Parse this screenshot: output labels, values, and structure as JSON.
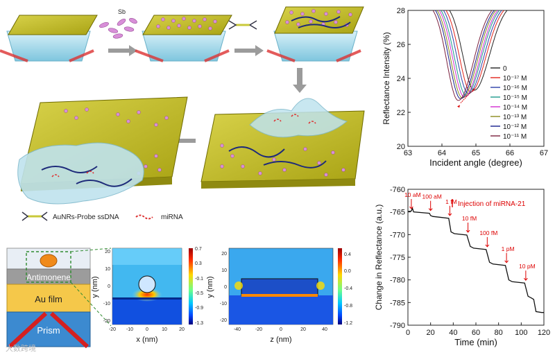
{
  "schematic": {
    "label_sb": "Sb",
    "legend_probe": "AuNRs-Probe ssDNA",
    "legend_mirna": "miRNA"
  },
  "stack": {
    "antimonene": "Antimonene",
    "au_film": "Au film",
    "prism": "Prism"
  },
  "field_xy": {
    "xlabel": "x (nm)",
    "ylabel": "y (nm)",
    "xticks": [
      "-20",
      "-10",
      "0",
      "10",
      "20"
    ],
    "yticks": [
      "20",
      "10",
      "0",
      "-10",
      "-20"
    ],
    "colorbar": [
      "0.7",
      "0.3",
      "-0.1",
      "-0.5",
      "-0.9",
      "-1.3"
    ]
  },
  "field_zy": {
    "xlabel": "z (nm)",
    "ylabel": "y (nm)",
    "xticks": [
      "-40",
      "-20",
      "0",
      "20",
      "40"
    ],
    "yticks": [
      "20",
      "10",
      "0",
      "-10",
      "-20"
    ],
    "colorbar": [
      "0.4",
      "0.0",
      "-0.4",
      "-0.8",
      "-1.2"
    ]
  },
  "watermark": "大数跨境",
  "chart_data": [
    {
      "type": "line",
      "title": "",
      "xlabel": "Incident angle (degree)",
      "ylabel": "Reflectance Intensity (%)",
      "xlim": [
        63,
        67
      ],
      "ylim": [
        20,
        28
      ],
      "xticks": [
        "63",
        "64",
        "65",
        "66",
        "67"
      ],
      "yticks": [
        "28",
        "26",
        "24",
        "22",
        "20"
      ],
      "legend_position": "right",
      "series": [
        {
          "name": "0",
          "color": "#222222",
          "min_angle": 64.95,
          "min_value": 23.3
        },
        {
          "name": "10⁻¹⁷ M",
          "color": "#e2231a",
          "min_angle": 64.85,
          "min_value": 23.2
        },
        {
          "name": "10⁻¹⁶ M",
          "color": "#2a3ea8",
          "min_angle": 64.78,
          "min_value": 23.1
        },
        {
          "name": "10⁻¹⁵ M",
          "color": "#1c9a8c",
          "min_angle": 64.71,
          "min_value": 23.0
        },
        {
          "name": "10⁻¹⁴ M",
          "color": "#d22bd0",
          "min_angle": 64.66,
          "min_value": 22.9
        },
        {
          "name": "10⁻¹³ M",
          "color": "#8a8a1c",
          "min_angle": 64.6,
          "min_value": 22.85
        },
        {
          "name": "10⁻¹² M",
          "color": "#141c8c",
          "min_angle": 64.55,
          "min_value": 22.8
        },
        {
          "name": "10⁻¹¹ M",
          "color": "#7a1e3c",
          "min_angle": 64.48,
          "min_value": 22.7
        }
      ]
    },
    {
      "type": "line",
      "title": "",
      "xlabel": "Time (min)",
      "ylabel": "Change in Reflectance (a.u.)",
      "xlim": [
        0,
        120
      ],
      "ylim": [
        -790,
        -760
      ],
      "xticks": [
        "0",
        "20",
        "40",
        "60",
        "80",
        "100",
        "120"
      ],
      "yticks": [
        "-760",
        "-765",
        "-770",
        "-775",
        "-780",
        "-785",
        "-790"
      ],
      "legend": "Injection of miRNA-21",
      "annotations": [
        {
          "label": "10 aM",
          "time": 3
        },
        {
          "label": "100 aM",
          "time": 20
        },
        {
          "label": "1 fM",
          "time": 37
        },
        {
          "label": "10 fM",
          "time": 53
        },
        {
          "label": "100 fM",
          "time": 70
        },
        {
          "label": "1 pM",
          "time": 87
        },
        {
          "label": "10 pM",
          "time": 104
        }
      ],
      "series": [
        {
          "name": "signal",
          "points": [
            [
              0,
              -764.9
            ],
            [
              3,
              -764.8
            ],
            [
              4,
              -764.2
            ],
            [
              5,
              -765.0
            ],
            [
              19,
              -765.3
            ],
            [
              20,
              -765.8
            ],
            [
              22,
              -766.0
            ],
            [
              36,
              -766.4
            ],
            [
              38,
              -769.4
            ],
            [
              41,
              -769.8
            ],
            [
              52,
              -770.1
            ],
            [
              55,
              -772.6
            ],
            [
              58,
              -773.0
            ],
            [
              69,
              -773.3
            ],
            [
              72,
              -776.1
            ],
            [
              75,
              -776.5
            ],
            [
              86,
              -776.8
            ],
            [
              89,
              -780.0
            ],
            [
              92,
              -780.4
            ],
            [
              103,
              -780.7
            ],
            [
              106,
              -783.6
            ],
            [
              109,
              -784.0
            ],
            [
              111,
              -784.3
            ],
            [
              113,
              -787.0
            ],
            [
              118,
              -787.2
            ],
            [
              120,
              -787.2
            ]
          ]
        }
      ]
    }
  ]
}
